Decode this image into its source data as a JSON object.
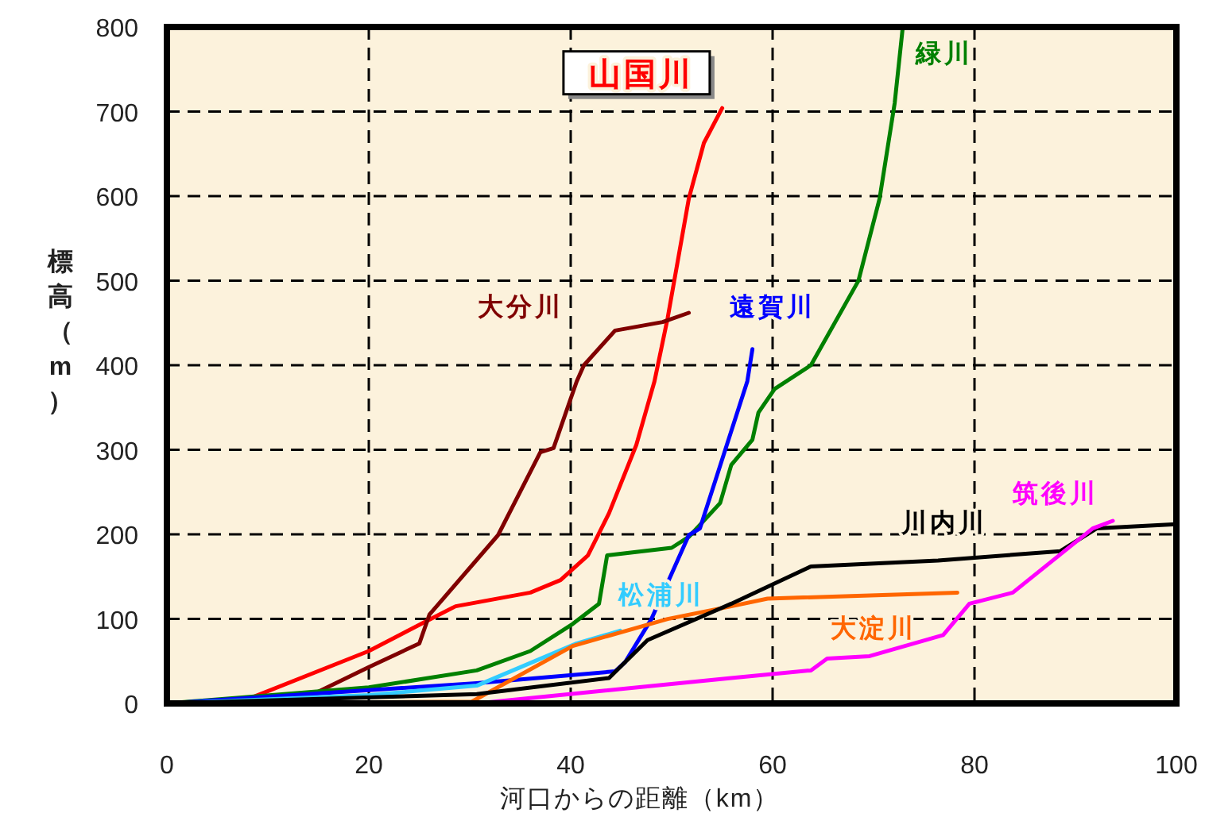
{
  "chart_data": {
    "type": "line",
    "xlabel": "河口からの距離（km）",
    "ylabel": "標高（m）",
    "xlim": [
      0,
      100
    ],
    "ylim": [
      0,
      800
    ],
    "xticks": [
      0,
      20,
      40,
      60,
      80,
      100
    ],
    "yticks": [
      0,
      100,
      200,
      300,
      400,
      500,
      600,
      700,
      800
    ],
    "grid": true,
    "line_style": "solid",
    "marker": "none",
    "series": [
      {
        "name": "山国川",
        "color": "#ff0000",
        "x": [
          0,
          8,
          20,
          25.5,
          28.6,
          36,
          39,
          41.7,
          43.8,
          46.5,
          48.3,
          49.6,
          51.7,
          53.2,
          55
        ],
        "values": [
          0,
          5,
          62,
          96,
          115,
          131,
          146,
          175,
          225,
          306,
          381,
          456,
          597,
          663,
          704
        ]
      },
      {
        "name": "大分川",
        "color": "#800000",
        "x": [
          0,
          8,
          14.5,
          20,
          25,
          26,
          32.8,
          37,
          38.3,
          40.6,
          41.3,
          44.4,
          49.1,
          51.7
        ],
        "values": [
          0,
          2,
          11,
          43,
          71,
          105,
          199,
          297,
          302,
          381,
          400,
          441,
          451,
          462
        ]
      },
      {
        "name": "緑川",
        "color": "#008000",
        "x": [
          0,
          20,
          30.7,
          36,
          40.2,
          42.8,
          43.6,
          50,
          51.7,
          54.8,
          55.9,
          58,
          58.6,
          60.2,
          63.8,
          68.5,
          70.6,
          72.1,
          72.9
        ],
        "values": [
          0,
          19,
          39,
          62,
          94,
          118,
          175,
          184,
          197,
          237,
          282,
          312,
          344,
          372,
          400,
          500,
          597,
          710,
          800
        ]
      },
      {
        "name": "遠賀川",
        "color": "#0000ff",
        "x": [
          0,
          30.7,
          44.4,
          45.4,
          48,
          51.7,
          52.8,
          57.5,
          58
        ],
        "values": [
          0,
          24,
          38,
          49,
          100,
          199,
          207,
          381,
          419
        ]
      },
      {
        "name": "松浦川",
        "color": "#33ccff",
        "x": [
          0,
          20,
          30.7,
          40.6,
          44.9
        ],
        "values": [
          0,
          10,
          21,
          71,
          86
        ]
      },
      {
        "name": "大淀川",
        "color": "#ff6600",
        "x": [
          0,
          30.2,
          40.2,
          49.6,
          55.9,
          59.5,
          78.3
        ],
        "values": [
          0,
          2,
          68,
          100,
          115,
          124,
          131
        ]
      },
      {
        "name": "川内川",
        "color": "#000000",
        "x": [
          0,
          30.7,
          43.8,
          47.6,
          55.9,
          63.8,
          76.4,
          88.5,
          92.1,
          100
        ],
        "values": [
          0,
          11,
          30,
          75,
          118,
          162,
          169,
          180,
          207,
          212
        ]
      },
      {
        "name": "筑後川",
        "color": "#ff00ff",
        "x": [
          30.7,
          55.9,
          63.8,
          65.4,
          69.6,
          76.9,
          79.5,
          83.8,
          91.7,
          93.7
        ],
        "values": [
          0,
          30,
          39,
          53,
          56,
          81,
          118,
          131,
          207,
          216
        ]
      }
    ]
  }
}
